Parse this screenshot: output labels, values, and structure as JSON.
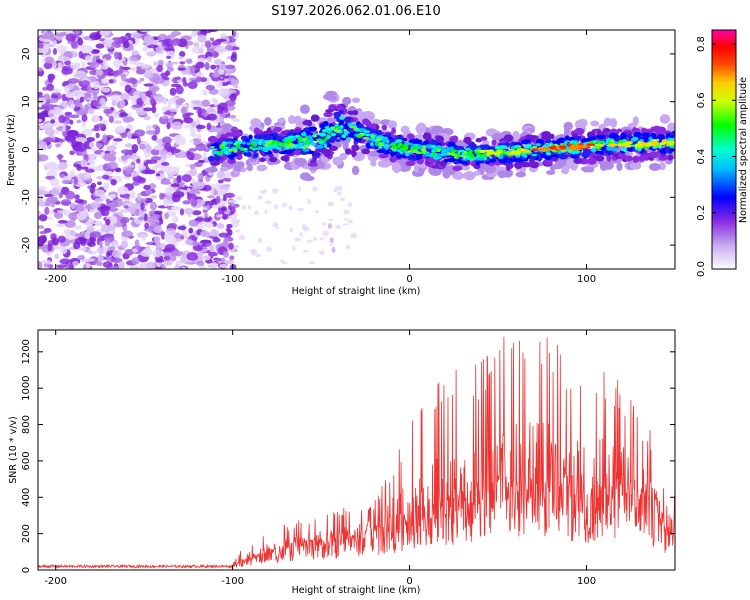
{
  "title": "S197.2026.062.01.06.E10",
  "chart_data": [
    {
      "type": "heatmap",
      "name": "spectrogram",
      "xlabel": "Height of straight line (km)",
      "ylabel": "Frequency (Hz)",
      "xlim": [
        -210,
        150
      ],
      "ylim": [
        -25,
        25
      ],
      "x_ticks": [
        -200,
        -100,
        0,
        100
      ],
      "y_ticks": [
        -20,
        -10,
        0,
        10,
        20
      ],
      "description_series": {
        "noise_region_x": [
          -210,
          -100
        ],
        "signal_track": {
          "x": [
            -110,
            -80,
            -50,
            -40,
            -20,
            0,
            30,
            60,
            90,
            120,
            150
          ],
          "freq_hz": [
            0,
            1,
            2,
            5,
            2,
            0,
            -1,
            -0.5,
            0.5,
            1,
            1.5
          ]
        },
        "peak_amplitude_near_x": [
          80,
          100
        ]
      },
      "colorbar": {
        "label": "Normalized spectral amplitude",
        "range": [
          0.0,
          0.85
        ],
        "ticks": [
          "0.0",
          "0.2",
          "0.4",
          "0.6",
          "0.8"
        ],
        "colors": [
          "#ffffff",
          "#8a2be2",
          "#0000ff",
          "#00ffff",
          "#00ff00",
          "#ffff00",
          "#ff8800",
          "#ff0000",
          "#ff00aa"
        ]
      }
    },
    {
      "type": "line",
      "name": "snr",
      "xlabel": "Height of straight line (km)",
      "ylabel": "SNR (10 * v/v)",
      "xlim": [
        -210,
        150
      ],
      "ylim": [
        0,
        1320
      ],
      "x_ticks": [
        -200,
        -100,
        0,
        100
      ],
      "y_ticks": [
        0,
        200,
        400,
        600,
        800,
        1000,
        1200
      ],
      "color": "#ee3333",
      "envelope": {
        "x": [
          -210,
          -100,
          -95,
          -80,
          -60,
          -40,
          -20,
          0,
          20,
          40,
          50,
          60,
          75,
          90,
          100,
          110,
          120,
          130,
          140,
          145,
          150
        ],
        "baseline": [
          20,
          20,
          40,
          90,
          130,
          160,
          200,
          260,
          330,
          390,
          420,
          420,
          430,
          400,
          370,
          360,
          420,
          360,
          320,
          220,
          280
        ],
        "peaks": [
          35,
          35,
          120,
          230,
          280,
          340,
          390,
          800,
          1100,
          1170,
          1300,
          1290,
          1320,
          1180,
          1200,
          1170,
          1060,
          880,
          700,
          380,
          420
        ]
      }
    }
  ]
}
